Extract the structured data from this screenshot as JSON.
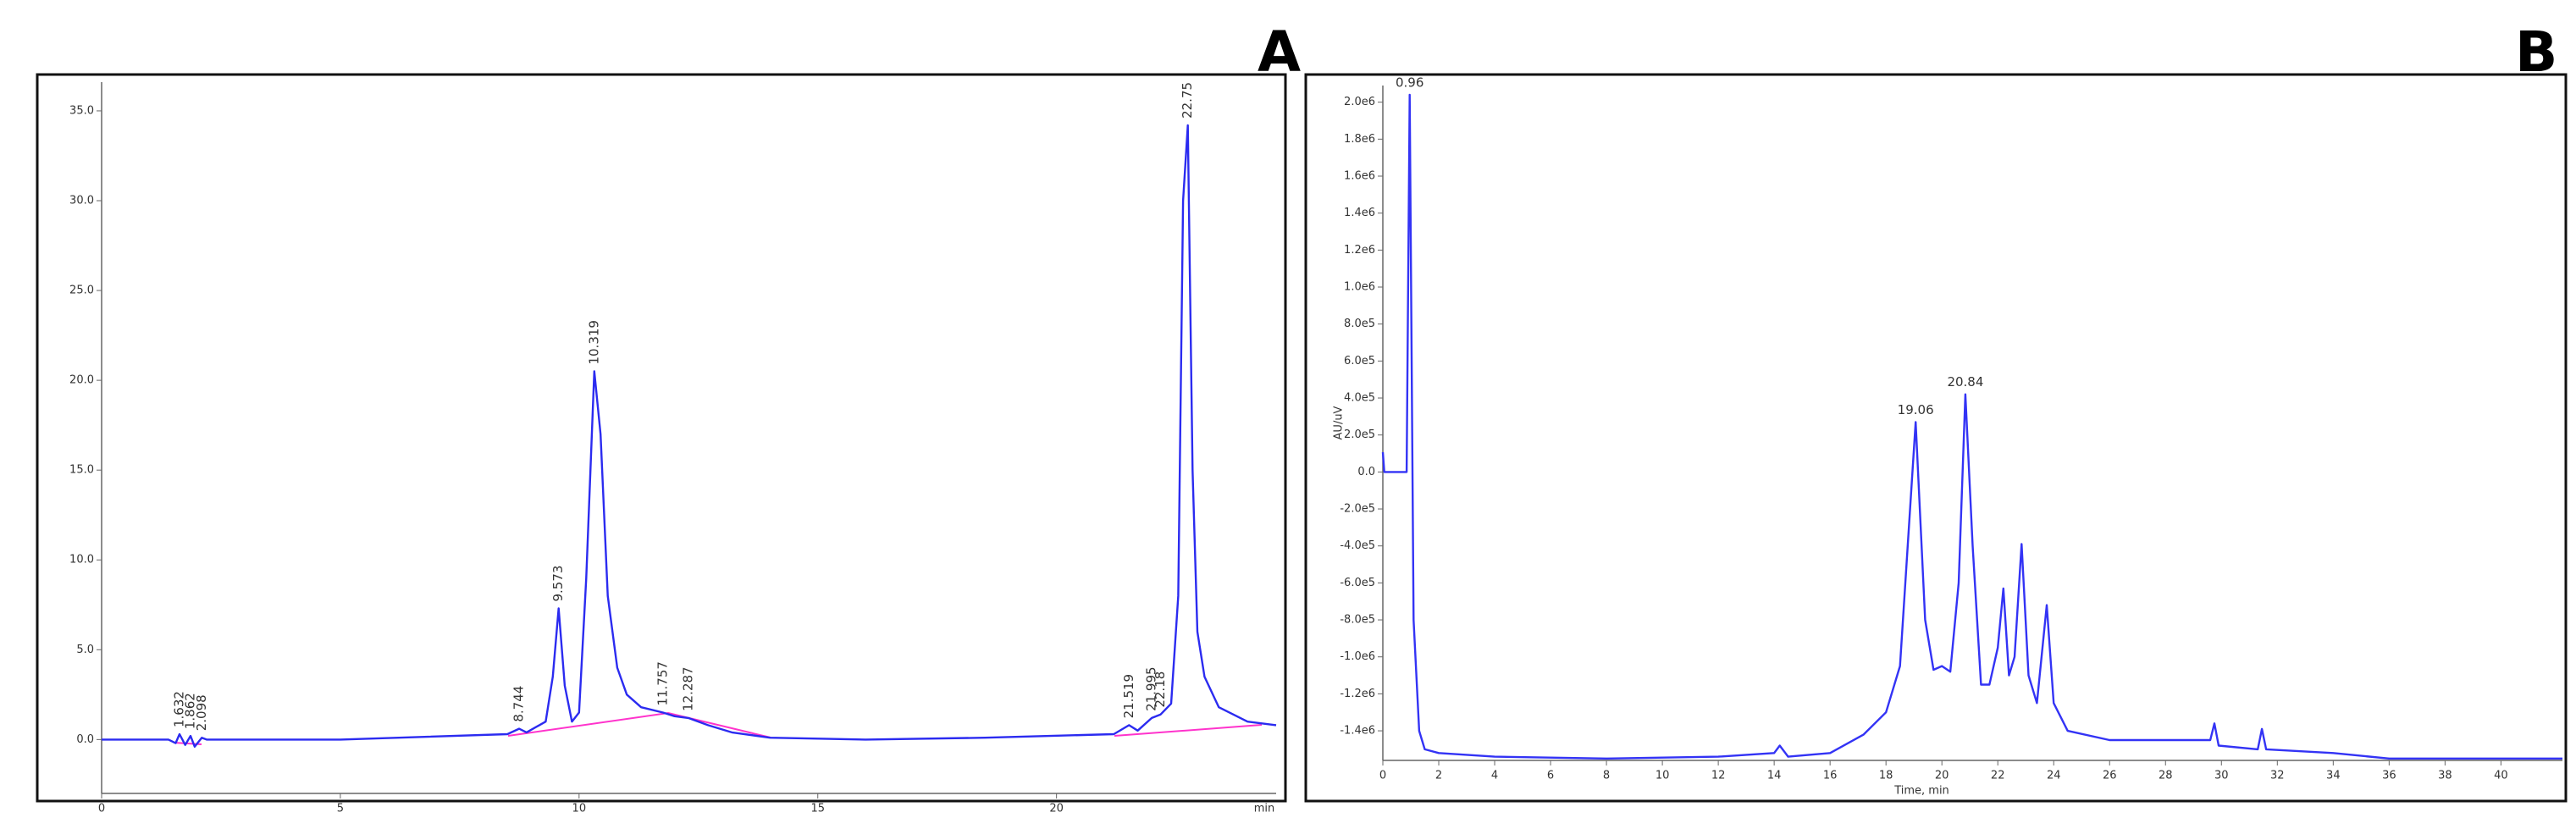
{
  "chart_data": [
    {
      "type": "line",
      "panel": "A",
      "color": "#2b2bf0",
      "x": [
        0,
        1.4,
        1.55,
        1.632,
        1.75,
        1.862,
        1.95,
        2.098,
        2.2,
        5,
        8.5,
        8.744,
        8.9,
        9.3,
        9.45,
        9.573,
        9.7,
        9.85,
        10.0,
        10.15,
        10.319,
        10.45,
        10.6,
        10.8,
        11.0,
        11.3,
        11.757,
        12.0,
        12.287,
        12.7,
        13.2,
        14,
        16,
        18.5,
        21.2,
        21.519,
        21.7,
        21.995,
        22.18,
        22.4,
        22.55,
        22.65,
        22.75,
        22.85,
        22.95,
        23.1,
        23.4,
        24,
        24.6
      ],
      "values": [
        0,
        0,
        -0.2,
        0.3,
        -0.3,
        0.2,
        -0.4,
        0.1,
        0,
        0,
        0.3,
        0.6,
        0.4,
        1.0,
        3.5,
        7.3,
        3.0,
        1.0,
        1.5,
        9.0,
        20.5,
        17.0,
        8.0,
        4.0,
        2.5,
        1.8,
        1.5,
        1.3,
        1.2,
        0.8,
        0.4,
        0.1,
        0,
        0.1,
        0.3,
        0.8,
        0.5,
        1.2,
        1.4,
        2.0,
        8.0,
        30.0,
        34.2,
        15.0,
        6.0,
        3.5,
        1.8,
        1.0,
        0.8
      ],
      "xlim": [
        0,
        24.6
      ],
      "ylim": [
        -3,
        36.6
      ],
      "xticks": [
        0,
        5,
        10,
        15,
        20
      ],
      "x_label": "min",
      "yticks": [
        {
          "value": 0,
          "label": "0.0"
        },
        {
          "value": 5,
          "label": "5.0"
        },
        {
          "value": 10,
          "label": "10.0"
        },
        {
          "value": 15,
          "label": "15.0"
        },
        {
          "value": 20,
          "label": "20.0"
        },
        {
          "value": 25,
          "label": "25.0"
        },
        {
          "value": 30,
          "label": "30.0"
        },
        {
          "value": 35,
          "label": "35.0"
        }
      ],
      "annotation_orientation": "vertical",
      "annotations": [
        {
          "text": "1.632",
          "x": 1.632,
          "y": 0.3
        },
        {
          "text": "1.862",
          "x": 1.862,
          "y": 0.2
        },
        {
          "text": "2.098",
          "x": 2.098,
          "y": 0.1
        },
        {
          "text": "8.744",
          "x": 8.744,
          "y": 0.6
        },
        {
          "text": "9.573",
          "x": 9.573,
          "y": 7.3
        },
        {
          "text": "10.319",
          "x": 10.319,
          "y": 20.5
        },
        {
          "text": "11.757",
          "x": 11.757,
          "y": 1.5
        },
        {
          "text": "12.287",
          "x": 12.287,
          "y": 1.2
        },
        {
          "text": "21.519",
          "x": 21.519,
          "y": 0.8
        },
        {
          "text": "21.995",
          "x": 21.995,
          "y": 1.2
        },
        {
          "text": "22.18",
          "x": 22.18,
          "y": 1.4
        },
        {
          "text": "22.75",
          "x": 22.75,
          "y": 34.2
        }
      ]
    },
    {
      "type": "line",
      "panel": "B",
      "color": "#3333f5",
      "x": [
        0,
        0.05,
        0.85,
        0.96,
        1.1,
        1.3,
        1.5,
        2,
        4,
        8,
        12,
        14,
        14.2,
        14.5,
        16,
        17.2,
        18,
        18.5,
        19.06,
        19.4,
        19.7,
        20,
        20.3,
        20.6,
        20.84,
        21.1,
        21.4,
        21.7,
        22.0,
        22.2,
        22.4,
        22.6,
        22.85,
        23.1,
        23.4,
        23.75,
        24,
        24.5,
        26,
        29.6,
        29.75,
        29.9,
        31.3,
        31.45,
        31.6,
        34,
        36,
        42.2
      ],
      "values": [
        107000,
        0,
        0,
        2040000,
        -800000,
        -1400000,
        -1500000,
        -1520000,
        -1540000,
        -1550000,
        -1540000,
        -1520000,
        -1480000,
        -1540000,
        -1520000,
        -1420000,
        -1300000,
        -1050000,
        270000,
        -800000,
        -1070000,
        -1050000,
        -1080000,
        -600000,
        420000,
        -400000,
        -1150000,
        -1150000,
        -950000,
        -630000,
        -1100000,
        -1000000,
        -390000,
        -1100000,
        -1250000,
        -720000,
        -1250000,
        -1400000,
        -1450000,
        -1450000,
        -1360000,
        -1480000,
        -1500000,
        -1390000,
        -1500000,
        -1520000,
        -1550000,
        -1550000
      ],
      "xlim": [
        0,
        42.2
      ],
      "ylim": [
        -1560000,
        2090000
      ],
      "xticks": [
        0,
        2,
        4,
        6,
        8,
        10,
        12,
        14,
        16,
        18,
        20,
        22,
        24,
        26,
        28,
        30,
        32,
        34,
        36,
        38,
        40
      ],
      "x_label": "Time, min",
      "y_label": "AU/uV",
      "yticks": [
        {
          "value": 2000000,
          "label": "2.0e6"
        },
        {
          "value": 1800000,
          "label": "1.8e6"
        },
        {
          "value": 1600000,
          "label": "1.6e6"
        },
        {
          "value": 1400000,
          "label": "1.4e6"
        },
        {
          "value": 1200000,
          "label": "1.2e6"
        },
        {
          "value": 1000000,
          "label": "1.0e6"
        },
        {
          "value": 800000,
          "label": "8.0e5"
        },
        {
          "value": 600000,
          "label": "6.0e5"
        },
        {
          "value": 400000,
          "label": "4.0e5"
        },
        {
          "value": 200000,
          "label": "2.0e5"
        },
        {
          "value": 0,
          "label": "0.0"
        },
        {
          "value": -200000,
          "label": "-2.0e5"
        },
        {
          "value": -400000,
          "label": "-4.0e5"
        },
        {
          "value": -600000,
          "label": "-6.0e5"
        },
        {
          "value": -800000,
          "label": "-8.0e5"
        },
        {
          "value": -1000000,
          "label": "-1.0e6"
        },
        {
          "value": -1200000,
          "label": "-1.2e6"
        },
        {
          "value": -1400000,
          "label": "-1.4e6"
        }
      ],
      "annotation_orientation": "horizontal",
      "annotations": [
        {
          "text": "0.96",
          "x": 0.96,
          "y": 2040000
        },
        {
          "text": "19.06",
          "x": 19.06,
          "y": 270000
        },
        {
          "text": "20.84",
          "x": 20.84,
          "y": 420000
        }
      ]
    }
  ]
}
